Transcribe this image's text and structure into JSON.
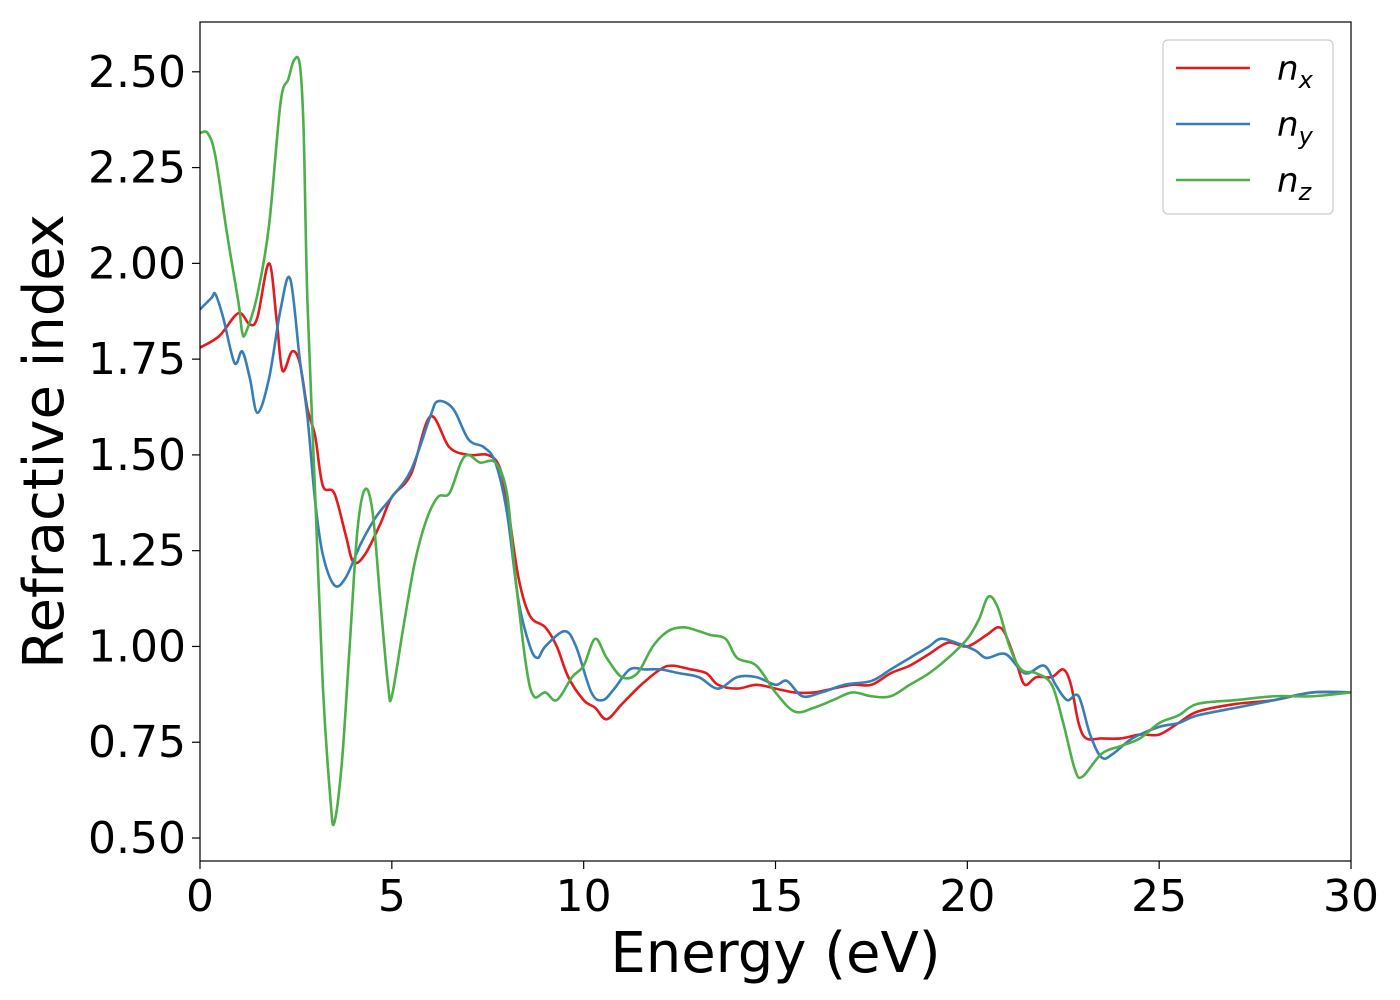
{
  "chart_data": {
    "type": "line",
    "title": "",
    "xlabel": "Energy (eV)",
    "ylabel": "Refractive index",
    "xlim": [
      0,
      30
    ],
    "ylim": [
      0.44,
      2.63
    ],
    "xticks": [
      0,
      5,
      10,
      15,
      20,
      25,
      30
    ],
    "xtick_labels": [
      "0",
      "5",
      "10",
      "15",
      "20",
      "25",
      "30"
    ],
    "yticks": [
      0.5,
      0.75,
      1.0,
      1.25,
      1.5,
      1.75,
      2.0,
      2.25,
      2.5
    ],
    "ytick_labels": [
      "0.50",
      "0.75",
      "1.00",
      "1.25",
      "1.50",
      "1.75",
      "2.00",
      "2.25",
      "2.50"
    ],
    "grid": false,
    "legend_position": "top-right",
    "series": [
      {
        "name": "n",
        "subscript": "x",
        "color": "#e41a1c",
        "points": [
          [
            0,
            1.78
          ],
          [
            0.5,
            1.81
          ],
          [
            1.0,
            1.87
          ],
          [
            1.3,
            1.84
          ],
          [
            1.5,
            1.86
          ],
          [
            1.8,
            2.0
          ],
          [
            2.0,
            1.85
          ],
          [
            2.15,
            1.72
          ],
          [
            2.4,
            1.77
          ],
          [
            2.6,
            1.74
          ],
          [
            2.8,
            1.62
          ],
          [
            3.0,
            1.55
          ],
          [
            3.2,
            1.42
          ],
          [
            3.5,
            1.4
          ],
          [
            3.8,
            1.29
          ],
          [
            4.0,
            1.22
          ],
          [
            4.3,
            1.24
          ],
          [
            4.7,
            1.32
          ],
          [
            5.0,
            1.39
          ],
          [
            5.5,
            1.45
          ],
          [
            6.0,
            1.6
          ],
          [
            6.5,
            1.52
          ],
          [
            7.0,
            1.5
          ],
          [
            7.5,
            1.5
          ],
          [
            7.8,
            1.47
          ],
          [
            8.0,
            1.38
          ],
          [
            8.3,
            1.18
          ],
          [
            8.6,
            1.08
          ],
          [
            9.0,
            1.05
          ],
          [
            9.3,
            1.0
          ],
          [
            9.6,
            0.92
          ],
          [
            10.0,
            0.86
          ],
          [
            10.3,
            0.84
          ],
          [
            10.6,
            0.81
          ],
          [
            11.0,
            0.85
          ],
          [
            11.5,
            0.9
          ],
          [
            12.0,
            0.94
          ],
          [
            12.3,
            0.95
          ],
          [
            12.8,
            0.94
          ],
          [
            13.2,
            0.93
          ],
          [
            13.5,
            0.9
          ],
          [
            14.0,
            0.89
          ],
          [
            14.5,
            0.9
          ],
          [
            15.0,
            0.89
          ],
          [
            15.5,
            0.88
          ],
          [
            16.0,
            0.88
          ],
          [
            16.5,
            0.89
          ],
          [
            17.0,
            0.9
          ],
          [
            17.5,
            0.9
          ],
          [
            18.0,
            0.93
          ],
          [
            18.5,
            0.95
          ],
          [
            19.0,
            0.98
          ],
          [
            19.5,
            1.01
          ],
          [
            20.0,
            1.0
          ],
          [
            20.5,
            1.03
          ],
          [
            20.8,
            1.05
          ],
          [
            21.0,
            1.03
          ],
          [
            21.3,
            0.95
          ],
          [
            21.5,
            0.9
          ],
          [
            21.8,
            0.92
          ],
          [
            22.2,
            0.92
          ],
          [
            22.5,
            0.94
          ],
          [
            22.7,
            0.9
          ],
          [
            22.9,
            0.8
          ],
          [
            23.1,
            0.76
          ],
          [
            23.5,
            0.76
          ],
          [
            24.0,
            0.76
          ],
          [
            24.5,
            0.77
          ],
          [
            25.0,
            0.77
          ],
          [
            25.5,
            0.8
          ],
          [
            26.0,
            0.83
          ],
          [
            27.0,
            0.85
          ],
          [
            28.0,
            0.86
          ],
          [
            29.0,
            0.88
          ],
          [
            30.0,
            0.88
          ]
        ]
      },
      {
        "name": "n",
        "subscript": "y",
        "color": "#377eb8",
        "points": [
          [
            0,
            1.88
          ],
          [
            0.3,
            1.91
          ],
          [
            0.4,
            1.92
          ],
          [
            0.6,
            1.86
          ],
          [
            0.9,
            1.74
          ],
          [
            1.1,
            1.77
          ],
          [
            1.3,
            1.7
          ],
          [
            1.5,
            1.61
          ],
          [
            1.8,
            1.7
          ],
          [
            2.1,
            1.88
          ],
          [
            2.35,
            1.96
          ],
          [
            2.6,
            1.75
          ],
          [
            2.8,
            1.6
          ],
          [
            3.0,
            1.38
          ],
          [
            3.2,
            1.24
          ],
          [
            3.5,
            1.16
          ],
          [
            3.8,
            1.18
          ],
          [
            4.2,
            1.27
          ],
          [
            4.6,
            1.34
          ],
          [
            5.0,
            1.39
          ],
          [
            5.5,
            1.46
          ],
          [
            6.0,
            1.6
          ],
          [
            6.2,
            1.64
          ],
          [
            6.6,
            1.62
          ],
          [
            7.0,
            1.54
          ],
          [
            7.4,
            1.52
          ],
          [
            7.7,
            1.48
          ],
          [
            8.0,
            1.35
          ],
          [
            8.3,
            1.12
          ],
          [
            8.6,
            1.0
          ],
          [
            8.8,
            0.97
          ],
          [
            9.0,
            1.0
          ],
          [
            9.5,
            1.04
          ],
          [
            9.8,
            1.0
          ],
          [
            10.2,
            0.88
          ],
          [
            10.5,
            0.86
          ],
          [
            10.8,
            0.89
          ],
          [
            11.2,
            0.94
          ],
          [
            11.6,
            0.94
          ],
          [
            12.0,
            0.94
          ],
          [
            12.5,
            0.93
          ],
          [
            13.0,
            0.92
          ],
          [
            13.5,
            0.89
          ],
          [
            14.0,
            0.92
          ],
          [
            14.5,
            0.92
          ],
          [
            15.0,
            0.9
          ],
          [
            15.3,
            0.91
          ],
          [
            15.7,
            0.87
          ],
          [
            16.2,
            0.88
          ],
          [
            16.8,
            0.9
          ],
          [
            17.5,
            0.91
          ],
          [
            18.0,
            0.94
          ],
          [
            18.5,
            0.97
          ],
          [
            19.0,
            1.0
          ],
          [
            19.3,
            1.02
          ],
          [
            19.7,
            1.01
          ],
          [
            20.2,
            0.99
          ],
          [
            20.5,
            0.97
          ],
          [
            21.0,
            0.98
          ],
          [
            21.5,
            0.93
          ],
          [
            22.0,
            0.95
          ],
          [
            22.3,
            0.9
          ],
          [
            22.6,
            0.86
          ],
          [
            22.9,
            0.87
          ],
          [
            23.2,
            0.77
          ],
          [
            23.5,
            0.71
          ],
          [
            23.8,
            0.72
          ],
          [
            24.3,
            0.76
          ],
          [
            25.0,
            0.79
          ],
          [
            25.5,
            0.8
          ],
          [
            26.0,
            0.82
          ],
          [
            27.0,
            0.84
          ],
          [
            28.0,
            0.86
          ],
          [
            29.0,
            0.88
          ],
          [
            30.0,
            0.88
          ]
        ]
      },
      {
        "name": "n",
        "subscript": "z",
        "color": "#4daf4a",
        "points": [
          [
            0,
            2.34
          ],
          [
            0.2,
            2.34
          ],
          [
            0.4,
            2.28
          ],
          [
            0.7,
            2.08
          ],
          [
            1.0,
            1.9
          ],
          [
            1.1,
            1.82
          ],
          [
            1.2,
            1.82
          ],
          [
            1.5,
            1.92
          ],
          [
            1.8,
            2.1
          ],
          [
            2.1,
            2.42
          ],
          [
            2.3,
            2.48
          ],
          [
            2.45,
            2.53
          ],
          [
            2.6,
            2.52
          ],
          [
            2.7,
            2.35
          ],
          [
            2.8,
            1.9
          ],
          [
            3.0,
            1.4
          ],
          [
            3.2,
            0.9
          ],
          [
            3.4,
            0.6
          ],
          [
            3.5,
            0.54
          ],
          [
            3.7,
            0.7
          ],
          [
            3.9,
            1.0
          ],
          [
            4.1,
            1.3
          ],
          [
            4.3,
            1.41
          ],
          [
            4.5,
            1.35
          ],
          [
            4.7,
            1.12
          ],
          [
            4.9,
            0.9
          ],
          [
            5.0,
            0.87
          ],
          [
            5.3,
            1.05
          ],
          [
            5.6,
            1.22
          ],
          [
            5.9,
            1.33
          ],
          [
            6.2,
            1.39
          ],
          [
            6.5,
            1.4
          ],
          [
            6.8,
            1.48
          ],
          [
            7.0,
            1.5
          ],
          [
            7.3,
            1.48
          ],
          [
            7.7,
            1.48
          ],
          [
            8.0,
            1.4
          ],
          [
            8.2,
            1.2
          ],
          [
            8.5,
            0.95
          ],
          [
            8.7,
            0.87
          ],
          [
            9.0,
            0.88
          ],
          [
            9.3,
            0.86
          ],
          [
            9.7,
            0.92
          ],
          [
            10.0,
            0.95
          ],
          [
            10.3,
            1.02
          ],
          [
            10.6,
            0.97
          ],
          [
            11.0,
            0.92
          ],
          [
            11.4,
            0.93
          ],
          [
            11.8,
            1.0
          ],
          [
            12.2,
            1.04
          ],
          [
            12.6,
            1.05
          ],
          [
            13.0,
            1.04
          ],
          [
            13.3,
            1.03
          ],
          [
            13.7,
            1.02
          ],
          [
            14.0,
            0.97
          ],
          [
            14.5,
            0.95
          ],
          [
            15.0,
            0.88
          ],
          [
            15.5,
            0.83
          ],
          [
            16.0,
            0.84
          ],
          [
            16.5,
            0.86
          ],
          [
            17.0,
            0.88
          ],
          [
            17.5,
            0.87
          ],
          [
            18.0,
            0.87
          ],
          [
            18.5,
            0.9
          ],
          [
            19.0,
            0.93
          ],
          [
            19.5,
            0.97
          ],
          [
            20.0,
            1.02
          ],
          [
            20.3,
            1.07
          ],
          [
            20.55,
            1.13
          ],
          [
            20.8,
            1.1
          ],
          [
            21.1,
            1.0
          ],
          [
            21.4,
            0.94
          ],
          [
            21.8,
            0.93
          ],
          [
            22.2,
            0.9
          ],
          [
            22.5,
            0.8
          ],
          [
            22.8,
            0.68
          ],
          [
            23.0,
            0.66
          ],
          [
            23.5,
            0.72
          ],
          [
            24.0,
            0.74
          ],
          [
            24.5,
            0.76
          ],
          [
            25.0,
            0.8
          ],
          [
            25.5,
            0.82
          ],
          [
            26.0,
            0.85
          ],
          [
            27.0,
            0.86
          ],
          [
            28.0,
            0.87
          ],
          [
            29.0,
            0.87
          ],
          [
            30.0,
            0.88
          ]
        ]
      }
    ]
  }
}
